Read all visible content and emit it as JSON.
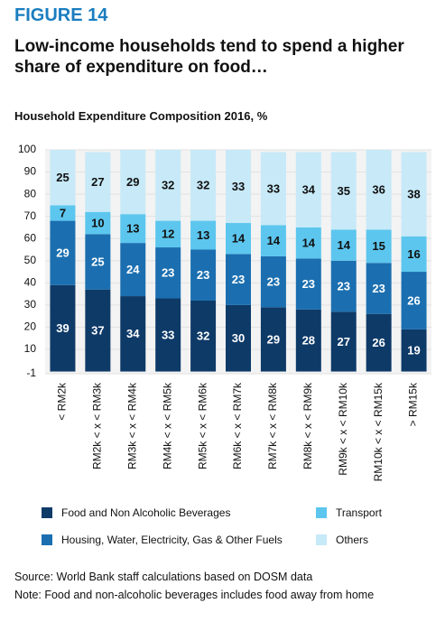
{
  "figure_label": "FIGURE 14",
  "headline": "Low-income households tend to spend a higher share of expenditure on food…",
  "chart_data": {
    "type": "stacked_bar",
    "title": "Household Expenditure Composition 2016, %",
    "categories": [
      "< RM2k",
      "RM2k < x < RM3k",
      "RM3k < x < RM4k",
      "RM4k < x < RM5k",
      "RM5k < x < RM6k",
      "RM6k < x < RM7k",
      "RM7k < x < RM8k",
      "RM8k < x < RM9k",
      "RM9k < x < RM10k",
      "RM10k < x < RM15k",
      "> RM15k"
    ],
    "series": [
      {
        "name": "Food and Non Alcoholic Beverages",
        "color": "#0e3a68",
        "values": [
          39,
          37,
          34,
          33,
          32,
          30,
          29,
          28,
          27,
          26,
          19
        ]
      },
      {
        "name": "Housing, Water, Electricity, Gas & Other Fuels",
        "color": "#1b6fb0",
        "values": [
          29,
          25,
          24,
          23,
          23,
          23,
          23,
          23,
          23,
          23,
          26
        ]
      },
      {
        "name": "Transport",
        "color": "#5cc6ee",
        "values": [
          7,
          10,
          13,
          12,
          13,
          14,
          14,
          14,
          14,
          15,
          16
        ]
      },
      {
        "name": "Others",
        "color": "#c7e9f8",
        "values": [
          25,
          27,
          29,
          32,
          32,
          33,
          33,
          34,
          35,
          36,
          38
        ]
      }
    ],
    "ylim": [
      -1,
      100
    ],
    "yticks": [
      -1,
      10,
      20,
      30,
      40,
      50,
      60,
      70,
      80,
      90,
      100
    ]
  },
  "source": "Source: World Bank staff calculations based on DOSM data",
  "note": "Note: Food and non-alcoholic beverages includes food away from home"
}
